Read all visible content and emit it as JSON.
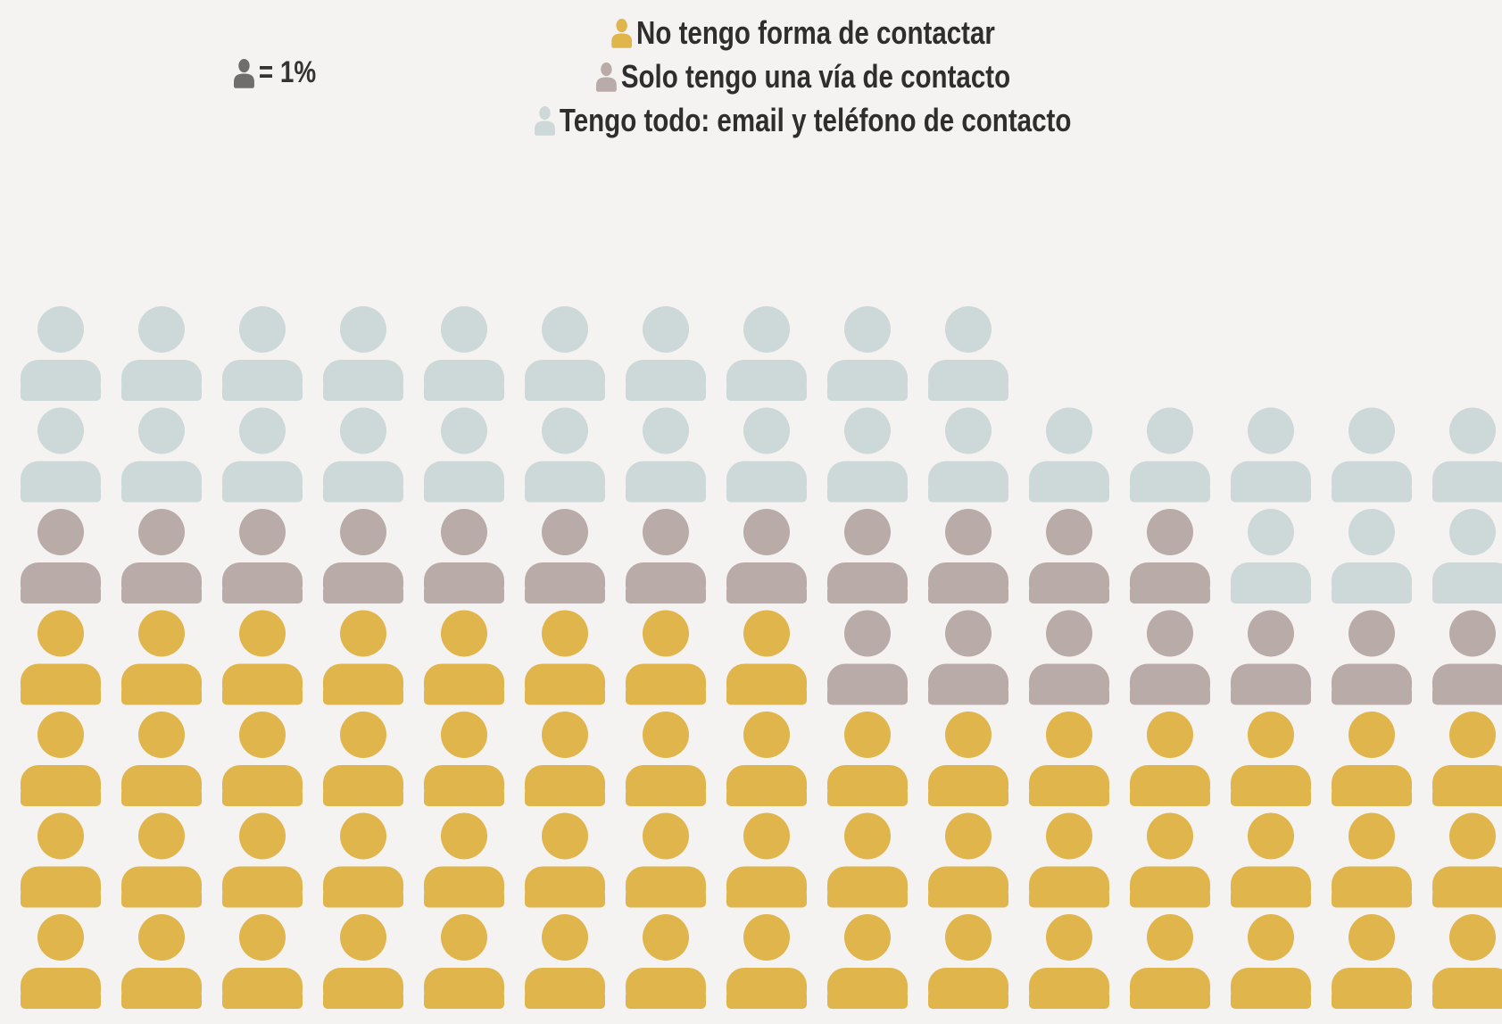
{
  "scale_key": {
    "label": "= 1%",
    "color": "#6e6e6e"
  },
  "legend": [
    {
      "label": "No tengo forma de contactar",
      "color": "#dfb54c"
    },
    {
      "label": "Solo tengo una vía de contacto",
      "color": "#b9aba7"
    },
    {
      "label": "Tengo todo: email y teléfono de contacto",
      "color": "#cdd8d9"
    }
  ],
  "chart_data": {
    "type": "waffle",
    "unit": "1%",
    "series": [
      {
        "name": "No tengo forma de contactar",
        "color": "#dfb54c",
        "column_counts": [
          4,
          4,
          4,
          4,
          4,
          4,
          4,
          4,
          3,
          3,
          3,
          3,
          3,
          3,
          3
        ]
      },
      {
        "name": "Solo tengo una vía de contacto",
        "color": "#b9aba7",
        "column_counts": [
          1,
          1,
          1,
          1,
          1,
          1,
          1,
          1,
          2,
          2,
          2,
          2,
          1,
          1,
          1
        ]
      },
      {
        "name": "Tengo todo: email y teléfono de contacto",
        "color": "#cdd8d9",
        "column_counts": [
          2,
          2,
          2,
          2,
          2,
          2,
          2,
          2,
          2,
          2,
          1,
          1,
          2,
          2,
          2
        ]
      }
    ]
  }
}
